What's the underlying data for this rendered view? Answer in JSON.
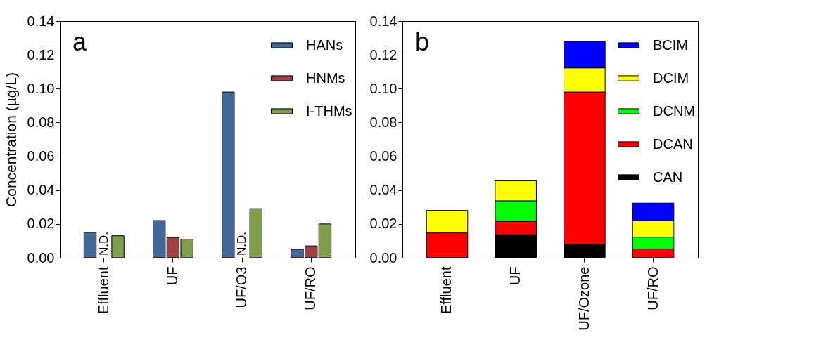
{
  "chart_data": [
    {
      "type": "bar",
      "ylabel": "Concentration (µg/L)",
      "categories": [
        "Effluent",
        "UF",
        "UF/O3",
        "UF/RO"
      ],
      "series": [
        {
          "name": "HANs",
          "color": "#416896",
          "values": [
            0.015,
            0.022,
            0.098,
            0.005
          ]
        },
        {
          "name": "HNMs",
          "color": "#a04040",
          "values": [
            null,
            0.012,
            null,
            0.007
          ]
        },
        {
          "name": "I-THMs",
          "color": "#7f9e49",
          "values": [
            0.013,
            0.011,
            0.029,
            0.02
          ]
        }
      ],
      "ylim": [
        0,
        0.14
      ],
      "yticks": [
        {
          "value": 0,
          "label": "0.00"
        },
        {
          "value": 0.02,
          "label": "0.02"
        },
        {
          "value": 0.04,
          "label": "0.04"
        },
        {
          "value": 0.06,
          "label": "0.06"
        },
        {
          "value": 0.08,
          "label": "0.08"
        },
        {
          "value": 0.1,
          "label": "0.10"
        },
        {
          "value": 0.12,
          "label": "0.12"
        },
        {
          "value": 0.14,
          "label": "0.14"
        }
      ],
      "legend": "top right",
      "annotations": [
        "a",
        "N.D.",
        "N.D."
      ]
    },
    {
      "type": "bar",
      "stacked": true,
      "categories": [
        "Effluent",
        "UF",
        "UF/Ozone",
        "UF/RO"
      ],
      "series": [
        {
          "name": "CAN",
          "color": "#000000",
          "values": [
            0,
            0.0136,
            0.0081,
            0
          ]
        },
        {
          "name": "DCAN",
          "color": "#ff0000",
          "values": [
            0.0147,
            0.008,
            0.0899,
            0.0052
          ]
        },
        {
          "name": "DCNM",
          "color": "#00ff00",
          "values": [
            0,
            0.0121,
            0,
            0.007
          ]
        },
        {
          "name": "DCIM",
          "color": "#ffff00",
          "values": [
            0.0133,
            0.0118,
            0.0143,
            0.0097
          ]
        },
        {
          "name": "BCIM",
          "color": "#0000ff",
          "values": [
            0,
            0,
            0.0157,
            0.0104
          ]
        }
      ],
      "ylim": [
        0,
        0.14
      ],
      "yticks": [
        {
          "value": 0,
          "label": "0.00"
        },
        {
          "value": 0.02,
          "label": "0.02"
        },
        {
          "value": 0.04,
          "label": "0.04"
        },
        {
          "value": 0.06,
          "label": "0.06"
        },
        {
          "value": 0.08,
          "label": "0.08"
        },
        {
          "value": 0.1,
          "label": "0.10"
        },
        {
          "value": 0.12,
          "label": "0.12"
        },
        {
          "value": 0.14,
          "label": "0.14"
        }
      ],
      "legend": "top right",
      "annotations": [
        "b"
      ]
    }
  ]
}
